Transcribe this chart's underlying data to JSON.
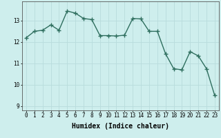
{
  "x": [
    0,
    1,
    2,
    3,
    4,
    5,
    6,
    7,
    8,
    9,
    10,
    11,
    12,
    13,
    14,
    15,
    16,
    17,
    18,
    19,
    20,
    21,
    22,
    23
  ],
  "y": [
    12.2,
    12.5,
    12.55,
    12.8,
    12.55,
    13.45,
    13.35,
    13.1,
    13.05,
    12.3,
    12.3,
    12.28,
    12.32,
    13.1,
    13.08,
    12.5,
    12.5,
    11.45,
    10.75,
    10.7,
    11.55,
    11.35,
    10.75,
    9.5
  ],
  "line_color": "#2e6e5e",
  "marker": "+",
  "marker_size": 4,
  "bg_color": "#ceeeed",
  "grid_color": "#b8dcdc",
  "axis_color": "#555555",
  "xlabel": "Humidex (Indice chaleur)",
  "xlabel_fontsize": 7,
  "ylim": [
    8.8,
    13.9
  ],
  "xlim": [
    -0.5,
    23.5
  ],
  "yticks": [
    9,
    10,
    11,
    12,
    13
  ],
  "xticks": [
    0,
    1,
    2,
    3,
    4,
    5,
    6,
    7,
    8,
    9,
    10,
    11,
    12,
    13,
    14,
    15,
    16,
    17,
    18,
    19,
    20,
    21,
    22,
    23
  ],
  "tick_fontsize": 5.5,
  "line_width": 1.0
}
